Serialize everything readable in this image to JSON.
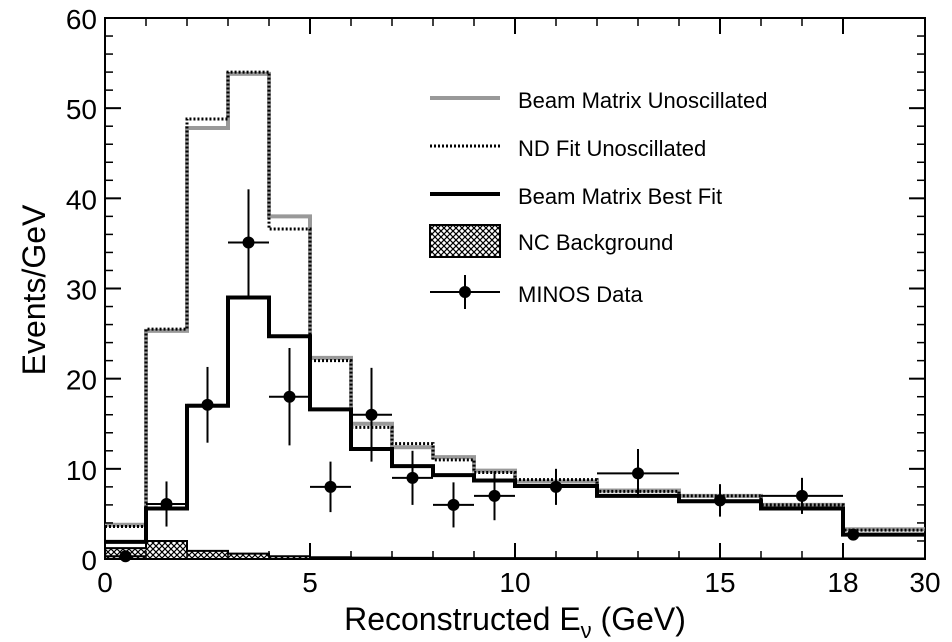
{
  "chart_data": {
    "type": "histogram",
    "xlabel_main": "Reconstructed E",
    "xlabel_sub": "ν",
    "xlabel_unit": " (GeV)",
    "ylabel": "Events/GeV",
    "ylim": [
      0,
      60
    ],
    "xaxis": "piecewise (linear 0–18 GeV, compressed 18–30 GeV)",
    "x_ticks": [
      "0",
      "5",
      "10",
      "15",
      "18",
      "30"
    ],
    "y_ticks": [
      "0",
      "10",
      "20",
      "30",
      "40",
      "50",
      "60"
    ],
    "bin_edges": [
      0,
      1,
      2,
      3,
      4,
      5,
      6,
      7,
      8,
      9,
      10,
      12,
      14,
      16,
      18,
      30
    ],
    "series": [
      {
        "name": "Beam Matrix Unoscillated",
        "style": "gray-solid",
        "color": "#999999",
        "values": [
          3.8,
          25.3,
          47.8,
          53.8,
          38.0,
          22.3,
          15.0,
          12.4,
          11.3,
          9.8,
          8.6,
          7.6,
          7.0,
          6.0,
          3.3
        ]
      },
      {
        "name": "ND Fit Unoscillated",
        "style": "black-dotted",
        "color": "#000000",
        "values": [
          3.6,
          25.5,
          48.8,
          54.0,
          36.6,
          22.0,
          14.6,
          12.8,
          11.0,
          9.6,
          8.8,
          7.5,
          7.0,
          6.0,
          3.2
        ]
      },
      {
        "name": "Beam Matrix Best Fit",
        "style": "black-solid",
        "color": "#000000",
        "values": [
          1.9,
          5.6,
          17.0,
          29.0,
          24.7,
          16.6,
          12.2,
          10.3,
          9.3,
          8.7,
          8.1,
          7.0,
          6.4,
          5.6,
          2.7
        ]
      },
      {
        "name": "NC Background",
        "style": "crosshatch",
        "color": "#000000",
        "values": [
          1.2,
          2.0,
          0.9,
          0.6,
          0.3,
          0.2,
          0.15,
          0.12,
          0.1,
          0.1,
          0.1,
          0.08,
          0.07,
          0.06,
          0.05
        ]
      }
    ],
    "data_points": {
      "name": "MINOS Data",
      "x": [
        0.5,
        1.5,
        2.5,
        3.5,
        4.5,
        5.5,
        6.5,
        7.5,
        8.5,
        9.5,
        11,
        13,
        15,
        17,
        19.5
      ],
      "y": [
        0.3,
        6.1,
        17.1,
        35.1,
        18.0,
        8.0,
        16.0,
        9.0,
        6.0,
        7.0,
        8.0,
        9.5,
        6.5,
        7.0,
        2.7
      ],
      "y_err": [
        0.5,
        2.5,
        4.2,
        5.9,
        5.4,
        2.8,
        5.2,
        3.0,
        2.5,
        2.7,
        2.0,
        2.7,
        1.8,
        2.0,
        0.5
      ],
      "x_err": [
        0.5,
        0.5,
        0.5,
        0.5,
        0.5,
        0.5,
        0.5,
        0.5,
        0.5,
        0.5,
        1.0,
        1.0,
        1.0,
        1.0,
        0.0
      ]
    },
    "legend": {
      "position": "top-right",
      "entries": [
        {
          "label": "Beam Matrix Unoscillated",
          "style": "gray-solid"
        },
        {
          "label": "ND Fit Unoscillated",
          "style": "black-dotted"
        },
        {
          "label": "Beam Matrix Best Fit",
          "style": "black-solid"
        },
        {
          "label": "NC Background",
          "style": "crosshatch"
        },
        {
          "label": "MINOS Data",
          "style": "marker"
        }
      ]
    }
  }
}
